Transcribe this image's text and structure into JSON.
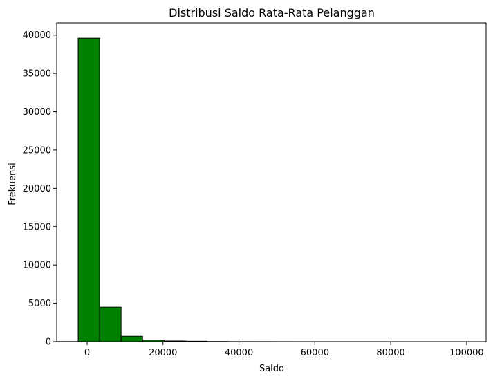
{
  "chart_data": {
    "type": "histogram",
    "title": "Distribusi Saldo Rata-Rata Pelanggan",
    "xlabel": "Saldo",
    "ylabel": "Frekuensi",
    "xlim": [
      -8019,
      105127
    ],
    "ylim": [
      0,
      41600
    ],
    "x_ticks": [
      {
        "value": 0,
        "label": "0"
      },
      {
        "value": 20000,
        "label": "20000"
      },
      {
        "value": 40000,
        "label": "40000"
      },
      {
        "value": 60000,
        "label": "60000"
      },
      {
        "value": 80000,
        "label": "80000"
      },
      {
        "value": 100000,
        "label": "100000"
      }
    ],
    "y_ticks": [
      {
        "value": 0,
        "label": "0"
      },
      {
        "value": 5000,
        "label": "5000"
      },
      {
        "value": 10000,
        "label": "10000"
      },
      {
        "value": 15000,
        "label": "15000"
      },
      {
        "value": 20000,
        "label": "20000"
      },
      {
        "value": 25000,
        "label": "25000"
      },
      {
        "value": 30000,
        "label": "30000"
      },
      {
        "value": 35000,
        "label": "35000"
      },
      {
        "value": 40000,
        "label": "40000"
      }
    ],
    "bins": [
      {
        "start": -8019,
        "end": -2363,
        "count": 15
      },
      {
        "start": -2363,
        "end": 3293,
        "count": 39600
      },
      {
        "start": 3293,
        "end": 8950,
        "count": 4500
      },
      {
        "start": 8950,
        "end": 14606,
        "count": 700
      },
      {
        "start": 14606,
        "end": 20262,
        "count": 200
      },
      {
        "start": 20262,
        "end": 25919,
        "count": 90
      },
      {
        "start": 25919,
        "end": 31575,
        "count": 60
      },
      {
        "start": 31575,
        "end": 37231,
        "count": 25
      },
      {
        "start": 37231,
        "end": 42887,
        "count": 12
      },
      {
        "start": 42887,
        "end": 48544,
        "count": 8
      },
      {
        "start": 48544,
        "end": 54200,
        "count": 6
      },
      {
        "start": 54200,
        "end": 59856,
        "count": 4
      },
      {
        "start": 59856,
        "end": 65513,
        "count": 3
      },
      {
        "start": 65513,
        "end": 71169,
        "count": 3
      },
      {
        "start": 71169,
        "end": 76825,
        "count": 2
      },
      {
        "start": 76825,
        "end": 82482,
        "count": 2
      },
      {
        "start": 82482,
        "end": 88138,
        "count": 1
      },
      {
        "start": 88138,
        "end": 93794,
        "count": 1
      },
      {
        "start": 93794,
        "end": 99451,
        "count": 1
      },
      {
        "start": 99451,
        "end": 105127,
        "count": 1
      }
    ],
    "bar_fill": "#008000",
    "bar_edge": "#000000",
    "grid": false,
    "legend": "none"
  }
}
